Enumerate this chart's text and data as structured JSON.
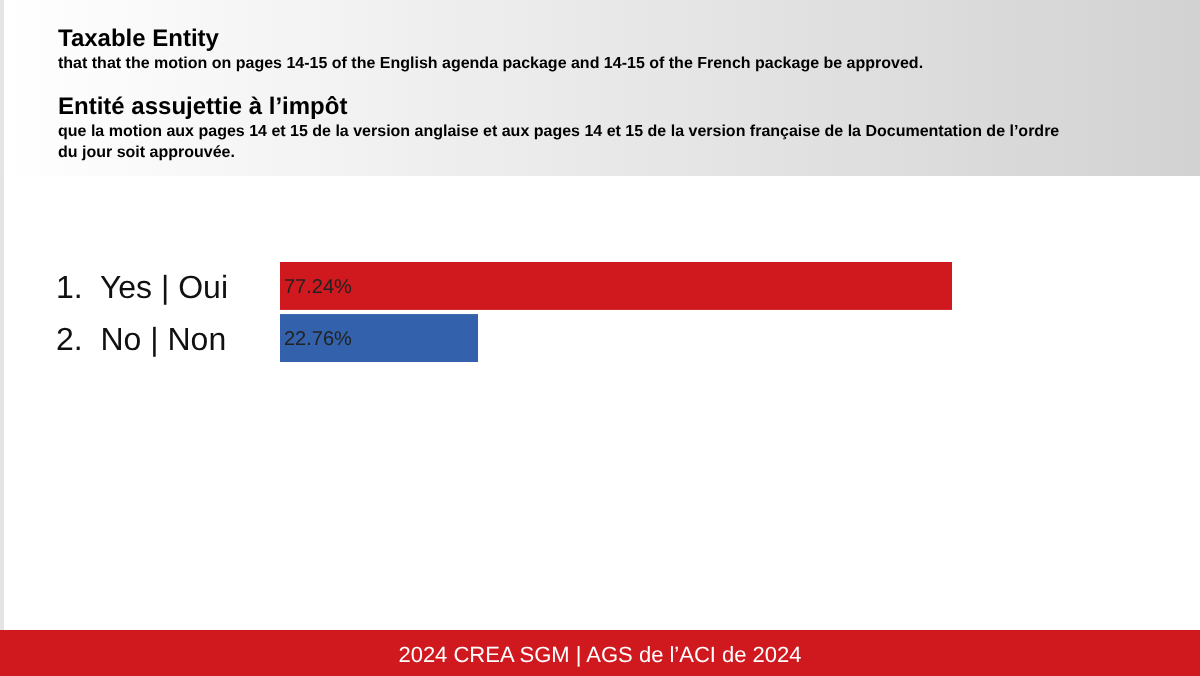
{
  "chart_data": {
    "type": "bar",
    "orientation": "horizontal",
    "title": "Taxable Entity",
    "subtitle": "that that the motion on pages 14-15 of the English agenda package and 14-15 of the French package be approved.",
    "annotations": [
      "Entité assujettie à l’impôt",
      "que la motion aux pages 14 et 15 de la version anglaise et aux pages 14 et 15 de la version française de la Documentation de l’ordre du jour soit approuvée.",
      "2024 CREA SGM | AGS de l’ACI de 2024"
    ],
    "categories": [
      "1.  Yes | Oui",
      "2.  No | Non"
    ],
    "values": [
      77.24,
      22.76
    ],
    "colors": [
      "#d0191f",
      "#3461ab"
    ],
    "value_labels": [
      "77.24%",
      "22.76%"
    ],
    "data_labels": false
  }
}
